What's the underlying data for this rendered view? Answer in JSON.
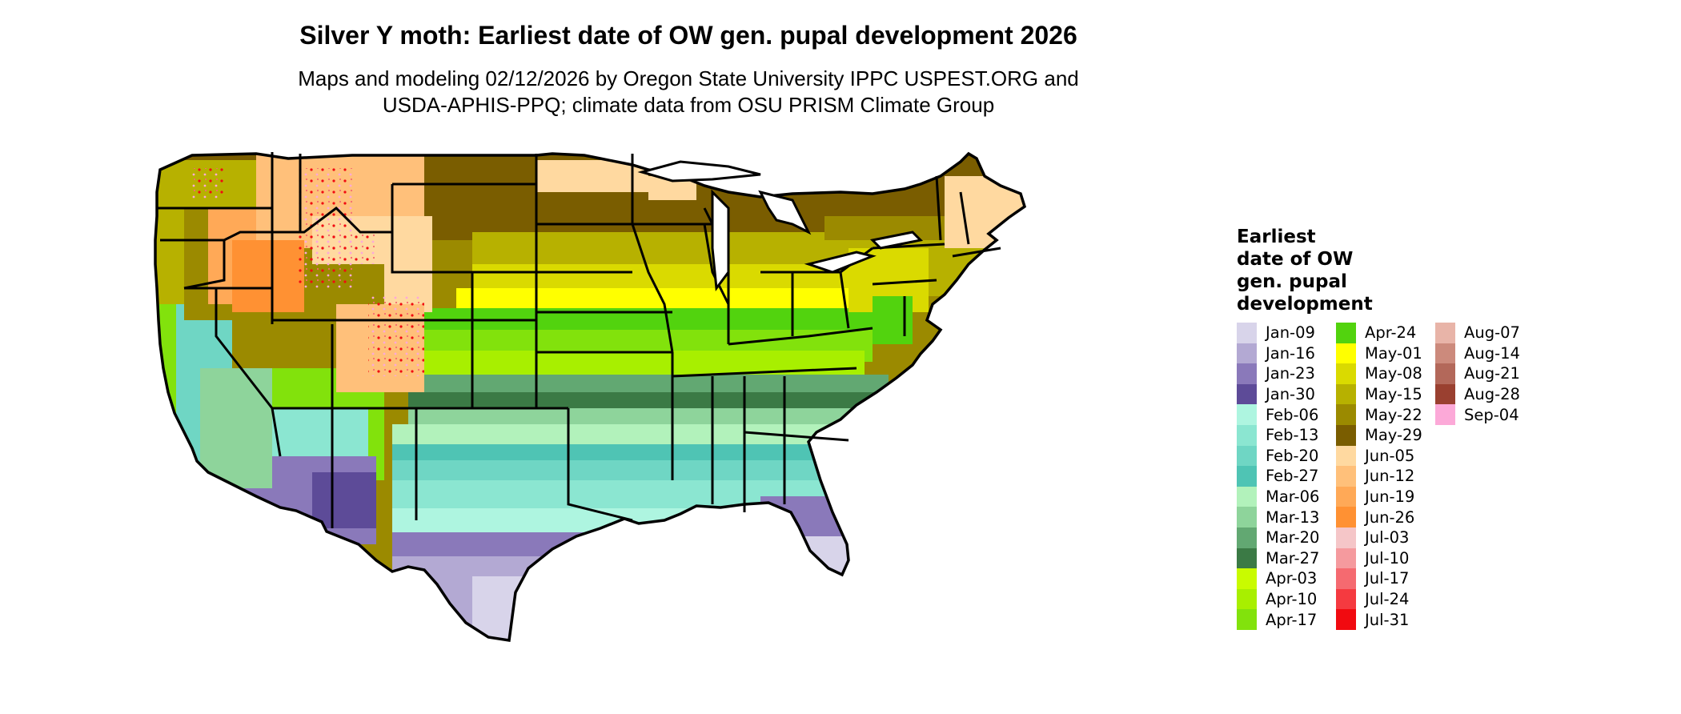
{
  "title": "Silver Y moth: Earliest date of OW gen. pupal development 2026",
  "subtitle_line1": "Maps and modeling 02/12/2026 by Oregon State University IPPC USPEST.ORG and",
  "subtitle_line2": "USDA-APHIS-PPQ; climate data from OSU PRISM Climate Group",
  "legend": {
    "title_lines": [
      "Earliest",
      "date of OW",
      "gen. pupal",
      "development"
    ],
    "columns": [
      [
        {
          "label": "Jan-09",
          "color": "#d8d4ea"
        },
        {
          "label": "Jan-16",
          "color": "#b3a9d3"
        },
        {
          "label": "Jan-23",
          "color": "#8a79ba"
        },
        {
          "label": "Jan-30",
          "color": "#5d4b98"
        },
        {
          "label": "Feb-06",
          "color": "#aef5e0"
        },
        {
          "label": "Feb-13",
          "color": "#8be6d1"
        },
        {
          "label": "Feb-20",
          "color": "#6fd6c4"
        },
        {
          "label": "Feb-27",
          "color": "#4fc4b4"
        },
        {
          "label": "Mar-06",
          "color": "#b2f2bb"
        },
        {
          "label": "Mar-13",
          "color": "#8ed49b"
        },
        {
          "label": "Mar-20",
          "color": "#62a872"
        },
        {
          "label": "Mar-27",
          "color": "#3b7a45"
        },
        {
          "label": "Apr-03",
          "color": "#c9fb00"
        },
        {
          "label": "Apr-10",
          "color": "#a8ef00"
        },
        {
          "label": "Apr-17",
          "color": "#82e20c"
        }
      ],
      [
        {
          "label": "Apr-24",
          "color": "#52d30e"
        },
        {
          "label": "May-01",
          "color": "#ffff00"
        },
        {
          "label": "May-08",
          "color": "#dada00"
        },
        {
          "label": "May-15",
          "color": "#b7b100"
        },
        {
          "label": "May-22",
          "color": "#9b8a00"
        },
        {
          "label": "May-29",
          "color": "#7a5d00"
        },
        {
          "label": "Jun-05",
          "color": "#ffd9a0"
        },
        {
          "label": "Jun-12",
          "color": "#ffc07a"
        },
        {
          "label": "Jun-19",
          "color": "#ffa957"
        },
        {
          "label": "Jun-26",
          "color": "#ff9133"
        },
        {
          "label": "Jul-03",
          "color": "#f5c6c8"
        },
        {
          "label": "Jul-10",
          "color": "#f59a9e"
        },
        {
          "label": "Jul-17",
          "color": "#f56a70"
        },
        {
          "label": "Jul-24",
          "color": "#f53a40"
        },
        {
          "label": "Jul-31",
          "color": "#f10a10"
        }
      ],
      [
        {
          "label": "Aug-07",
          "color": "#e8b4a8"
        },
        {
          "label": "Aug-14",
          "color": "#cc8a7c"
        },
        {
          "label": "Aug-21",
          "color": "#b3685a"
        },
        {
          "label": "Aug-28",
          "color": "#9a4030"
        },
        {
          "label": "Sep-04",
          "color": "#fca9d8"
        }
      ]
    ]
  }
}
